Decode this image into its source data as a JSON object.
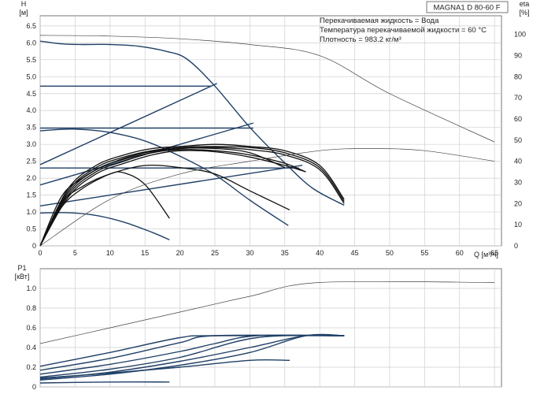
{
  "title": "MAGNA1 D 80-60 F",
  "notes": [
    "Перекачиваемая жидкость = Вода",
    "Температура перекачиваемой жидкости = 60 °C",
    "Плотность = 983.2 кг/м³"
  ],
  "colors": {
    "curve": "#1f3f66",
    "thin": "#444444",
    "grid": "#cfcfcf",
    "axis": "#555555"
  },
  "chart_data": [
    {
      "type": "line",
      "name": "head",
      "ylabel_top": "H",
      "ylabel_unit": "[м]",
      "y2label_top": "eta",
      "y2label_unit": "[%]",
      "xlabel": "Q [м³/ч]",
      "xlim": [
        0,
        66
      ],
      "ylim": [
        0,
        6.8
      ],
      "y2lim": [
        0,
        108.8
      ],
      "grid": true,
      "x_ticks": [
        "0",
        "5",
        "10",
        "15",
        "20",
        "25",
        "30",
        "35",
        "40",
        "45",
        "50",
        "55",
        "60",
        "65"
      ],
      "y_ticks": [
        "0",
        "0.5",
        "1.0",
        "1.5",
        "2.0",
        "2.5",
        "3.0",
        "3.5",
        "4.0",
        "4.5",
        "5.0",
        "5.5",
        "6.0",
        "6.5"
      ],
      "y2_ticks": [
        "0",
        "10",
        "20",
        "30",
        "40",
        "50",
        "60",
        "70",
        "80",
        "90",
        "100"
      ],
      "series": [
        {
          "role": "max-curve",
          "thin": true,
          "x": [
            0,
            10,
            20,
            30,
            40,
            50,
            65
          ],
          "y": [
            6.22,
            6.2,
            6.12,
            5.95,
            5.62,
            4.5,
            3.07
          ]
        },
        {
          "role": "head-curve",
          "x": [
            0,
            3,
            6,
            10,
            14,
            18,
            21,
            25,
            30,
            35,
            39,
            43.5
          ],
          "y": [
            6.05,
            5.97,
            5.95,
            5.95,
            5.9,
            5.75,
            5.52,
            4.72,
            3.5,
            2.45,
            1.7,
            1.2
          ]
        },
        {
          "role": "const-pressure",
          "x": [
            0,
            24.5
          ],
          "y": [
            4.72,
            4.72
          ]
        },
        {
          "role": "prop-pressure",
          "x": [
            0,
            25.3
          ],
          "y": [
            2.4,
            4.8
          ]
        },
        {
          "role": "const-pressure",
          "x": [
            0,
            30.5
          ],
          "y": [
            3.48,
            3.48
          ]
        },
        {
          "role": "prop-pressure",
          "x": [
            0,
            30.5
          ],
          "y": [
            1.8,
            3.63
          ]
        },
        {
          "role": "const-pressure",
          "x": [
            0,
            37
          ],
          "y": [
            2.3,
            2.3
          ]
        },
        {
          "role": "prop-pressure",
          "x": [
            0,
            37.5
          ],
          "y": [
            1.18,
            2.38
          ]
        },
        {
          "role": "head-curve",
          "x": [
            0,
            5,
            10,
            15,
            20,
            25,
            30,
            35.5
          ],
          "y": [
            3.4,
            3.45,
            3.35,
            3.1,
            2.65,
            2.1,
            1.35,
            0.6
          ]
        },
        {
          "role": "head-curve",
          "x": [
            0,
            4,
            8,
            12,
            16,
            18.5
          ],
          "y": [
            0.97,
            0.98,
            0.9,
            0.7,
            0.4,
            0.18
          ]
        },
        {
          "role": "efficiency",
          "x": [
            0,
            3,
            6,
            10,
            15,
            20,
            25,
            30,
            35
          ],
          "y": [
            0,
            23,
            32,
            39,
            44,
            46,
            46,
            44,
            37
          ]
        },
        {
          "role": "efficiency",
          "x": [
            0,
            3,
            6,
            10,
            15,
            20,
            25,
            30,
            35.7
          ],
          "y": [
            0,
            20,
            28,
            34,
            38,
            37,
            34,
            26,
            17
          ]
        },
        {
          "role": "efficiency",
          "x": [
            0,
            3,
            6,
            10,
            12,
            15,
            18.5
          ],
          "y": [
            0,
            18,
            27,
            34,
            34.5,
            29,
            13
          ]
        },
        {
          "role": "efficiency",
          "x": [
            0,
            4,
            8,
            12,
            16,
            20,
            25,
            30,
            35,
            40,
            43.5
          ],
          "y": [
            0,
            26,
            37,
            42,
            45,
            46.5,
            47,
            46.5,
            44,
            37,
            21
          ]
        },
        {
          "role": "efficiency",
          "x": [
            0,
            4,
            8,
            12,
            16,
            20,
            25,
            30,
            35,
            40,
            43.5
          ],
          "y": [
            0,
            27,
            38,
            43,
            46,
            47,
            48,
            47,
            45,
            38,
            22
          ]
        },
        {
          "role": "efficiency",
          "x": [
            0,
            4,
            8,
            12,
            16,
            20,
            25,
            30,
            35,
            40,
            43.5
          ],
          "y": [
            0,
            25,
            36,
            41,
            44,
            46,
            46.5,
            45.5,
            43,
            36,
            20
          ]
        },
        {
          "role": "efficiency",
          "x": [
            0,
            4,
            8,
            12,
            16,
            20,
            25,
            30,
            35,
            38
          ],
          "y": [
            0,
            24,
            35,
            40,
            44,
            45.5,
            45,
            43,
            39,
            35
          ]
        },
        {
          "role": "efficiency",
          "x": [
            0,
            4,
            8,
            12,
            16,
            20,
            25,
            30,
            35,
            38
          ],
          "y": [
            0,
            23,
            34,
            39,
            43,
            45,
            44.5,
            42,
            38,
            35
          ]
        },
        {
          "role": "efficiency-max",
          "thin": true,
          "x": [
            0,
            10,
            20,
            30,
            40,
            47,
            55,
            65
          ],
          "y": [
            0,
            22,
            34,
            40,
            45,
            46,
            45,
            40
          ]
        }
      ]
    },
    {
      "type": "line",
      "name": "power",
      "ylabel_top": "P1",
      "ylabel_unit": "[кВт]",
      "xlim": [
        0,
        66
      ],
      "ylim": [
        0,
        1.2
      ],
      "grid": true,
      "y_ticks": [
        "0",
        "0.2",
        "0.4",
        "0.6",
        "0.8",
        "1.0"
      ],
      "series": [
        {
          "role": "max-power",
          "thin": true,
          "x": [
            0,
            10,
            20,
            30,
            40,
            65
          ],
          "y": [
            0.44,
            0.6,
            0.76,
            0.92,
            1.06,
            1.06
          ]
        },
        {
          "role": "power",
          "x": [
            0,
            10,
            20,
            25,
            43.5
          ],
          "y": [
            0.21,
            0.35,
            0.5,
            0.52,
            0.52
          ]
        },
        {
          "role": "power",
          "x": [
            0,
            10,
            20,
            25,
            43.5
          ],
          "y": [
            0.17,
            0.29,
            0.45,
            0.52,
            0.52
          ]
        },
        {
          "role": "power",
          "x": [
            0,
            10,
            20,
            25,
            31,
            43.5
          ],
          "y": [
            0.13,
            0.23,
            0.36,
            0.44,
            0.52,
            0.52
          ]
        },
        {
          "role": "power",
          "x": [
            0,
            10,
            20,
            31,
            43.5
          ],
          "y": [
            0.1,
            0.18,
            0.3,
            0.5,
            0.52
          ]
        },
        {
          "role": "power",
          "x": [
            0,
            10,
            20,
            30,
            38,
            43.5
          ],
          "y": [
            0.08,
            0.15,
            0.26,
            0.4,
            0.52,
            0.52
          ]
        },
        {
          "role": "power",
          "x": [
            0,
            10,
            20,
            30,
            38,
            43.5
          ],
          "y": [
            0.07,
            0.13,
            0.22,
            0.35,
            0.52,
            0.52
          ]
        },
        {
          "role": "power",
          "x": [
            0,
            10,
            20,
            30,
            35.7
          ],
          "y": [
            0.09,
            0.14,
            0.2,
            0.27,
            0.27
          ]
        },
        {
          "role": "power",
          "x": [
            0,
            10,
            18.5
          ],
          "y": [
            0.04,
            0.05,
            0.05
          ]
        }
      ]
    }
  ]
}
